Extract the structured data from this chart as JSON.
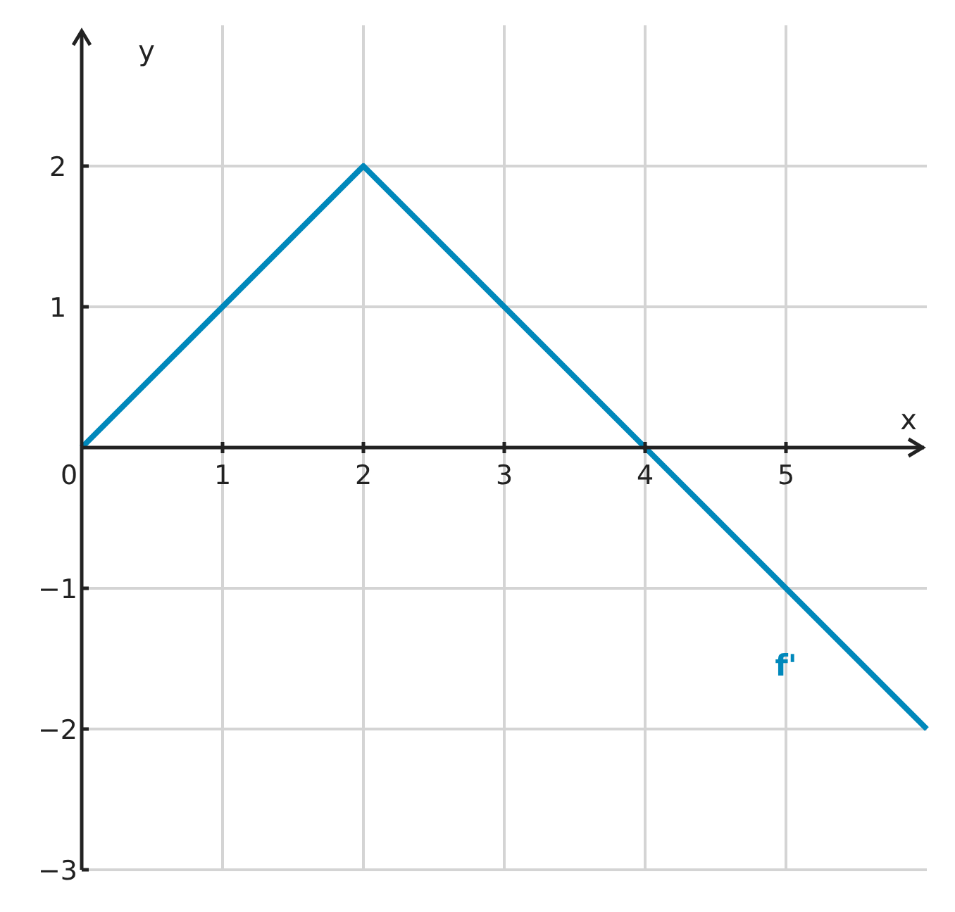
{
  "chart_data": {
    "type": "line",
    "xlabel": "x",
    "ylabel": "y",
    "x": [
      0,
      2,
      4,
      6
    ],
    "series": [
      {
        "name": "f'",
        "color": "#0088bb",
        "values": [
          0,
          2,
          0,
          -2
        ]
      }
    ],
    "xlim": [
      0,
      6
    ],
    "ylim": [
      -3,
      3
    ],
    "xticks": [
      0,
      1,
      2,
      3,
      4,
      5
    ],
    "yticks": [
      {
        "value": -3,
        "label": "−3"
      },
      {
        "value": -2,
        "label": "−2"
      },
      {
        "value": -1,
        "label": "−1"
      },
      1,
      2
    ],
    "grid": true,
    "legend": false,
    "marker": "none",
    "line_style": "solid"
  }
}
